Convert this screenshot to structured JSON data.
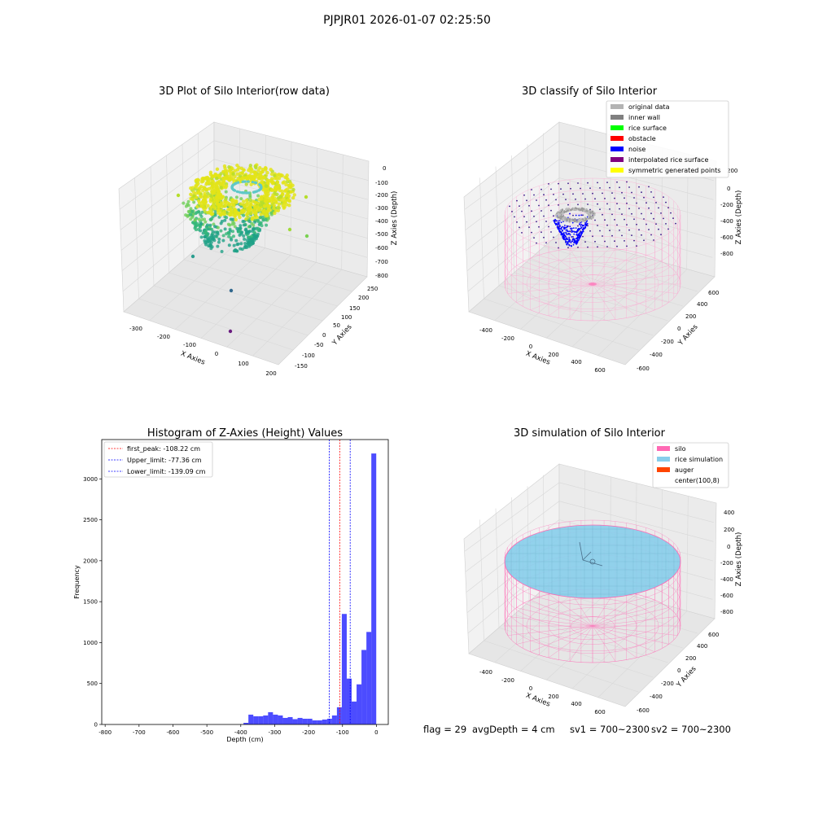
{
  "suptitle": "PJPJR01 2026-01-07 02:25:50",
  "colors": {
    "original": "#b3b3b3",
    "inner_wall": "#808080",
    "rice_surface": "#00ff00",
    "obstacle": "#ff0000",
    "noise": "#0000ff",
    "interpolated": "#800080",
    "symmetric": "#ffff00",
    "silo": "#ff69b4",
    "rice_sim": "#87ceeb",
    "auger": "#ff4500",
    "hist": "#0000ff"
  },
  "raw_plot": {
    "title": "3D Plot of Silo Interior(row data)",
    "xlabel": "X Axies",
    "ylabel": "Y Axies",
    "zlabel": "Z Axies (Depth)",
    "xticks": [
      "-300",
      "-200",
      "-100",
      "0",
      "100",
      "200"
    ],
    "yticks": [
      "-150",
      "-100",
      "-50",
      "0",
      "50",
      "100",
      "150",
      "200",
      "250"
    ],
    "zticks": [
      "0",
      "-100",
      "-200",
      "-300",
      "-400",
      "-500",
      "-600",
      "-700",
      "-800"
    ]
  },
  "classify_plot": {
    "title": "3D classify of Silo Interior",
    "xlabel": "X Axies",
    "ylabel": "Y Axies",
    "zlabel": "Z Axies (Depth)",
    "xticks": [
      "-400",
      "-200",
      "0",
      "200",
      "400",
      "600"
    ],
    "yticks": [
      "-600",
      "-400",
      "-200",
      "0",
      "200",
      "400",
      "600"
    ],
    "zticks": [
      "200",
      "0",
      "-200",
      "-400",
      "-600",
      "-800"
    ],
    "legend": [
      {
        "label": "original data",
        "color": "#b3b3b3"
      },
      {
        "label": "inner wall",
        "color": "#808080"
      },
      {
        "label": "rice surface",
        "color": "#00ff00"
      },
      {
        "label": "obstacle",
        "color": "#ff0000"
      },
      {
        "label": "noise",
        "color": "#0000ff"
      },
      {
        "label": "interpolated rice surface",
        "color": "#800080"
      },
      {
        "label": "symmetric generated points",
        "color": "#ffff00"
      }
    ]
  },
  "simulation_plot": {
    "title": "3D simulation of Silo Interior",
    "xlabel": "X Axies",
    "ylabel": "Y Axies",
    "zlabel": "Z Axies (Depth)",
    "xticks": [
      "-400",
      "-200",
      "0",
      "200",
      "400",
      "600"
    ],
    "yticks": [
      "-600",
      "-400",
      "-200",
      "0",
      "200",
      "400",
      "600"
    ],
    "zticks": [
      "400",
      "200",
      "0",
      "-200",
      "-400",
      "-600",
      "-800"
    ],
    "legend": [
      {
        "label": "silo",
        "color": "#ff69b4"
      },
      {
        "label": "rice simulation",
        "color": "#87ceeb"
      },
      {
        "label": "auger",
        "color": "#ff4500"
      },
      {
        "label": "center(100,8)",
        "color": ""
      }
    ]
  },
  "chart_data": {
    "type": "bar",
    "title": "Histogram of Z-Axies (Height) Values",
    "xlabel": "Depth (cm)",
    "ylabel": "Frequency",
    "xlim": [
      -810,
      35
    ],
    "ylim": [
      0,
      3480
    ],
    "xticks": [
      -800,
      -700,
      -600,
      -500,
      -400,
      -300,
      -200,
      -100,
      0
    ],
    "yticks": [
      0,
      500,
      1000,
      1500,
      2000,
      2500,
      3000
    ],
    "bin_width": 14.5,
    "bin_starts": [
      -392,
      -377.5,
      -363,
      -348.5,
      -334,
      -319.5,
      -305,
      -290.5,
      -276,
      -261.5,
      -247,
      -232.5,
      -218,
      -203.5,
      -189,
      -174.5,
      -160,
      -145.5,
      -131,
      -116.5,
      -102,
      -87.5,
      -73,
      -58.5,
      -44,
      -29.5,
      -15
    ],
    "values": [
      20,
      120,
      100,
      100,
      110,
      150,
      120,
      110,
      80,
      90,
      65,
      80,
      70,
      70,
      50,
      50,
      60,
      70,
      110,
      210,
      1350,
      560,
      280,
      490,
      910,
      1130,
      3310
    ],
    "lines": [
      {
        "label": "first_peak: -108.22 cm",
        "x": -108.22,
        "color": "#ff0000"
      },
      {
        "label": "Upper_limit: -77.36 cm",
        "x": -77.36,
        "color": "#0000ff"
      },
      {
        "label": "Lower_limit: -139.09 cm",
        "x": -139.09,
        "color": "#0000ff"
      }
    ]
  },
  "footer": {
    "flag": "flag = 29",
    "avg_depth": "avgDepth = 4 cm",
    "sv1": "sv1 = 700~2300",
    "sv2": "sv2 = 700~2300"
  }
}
